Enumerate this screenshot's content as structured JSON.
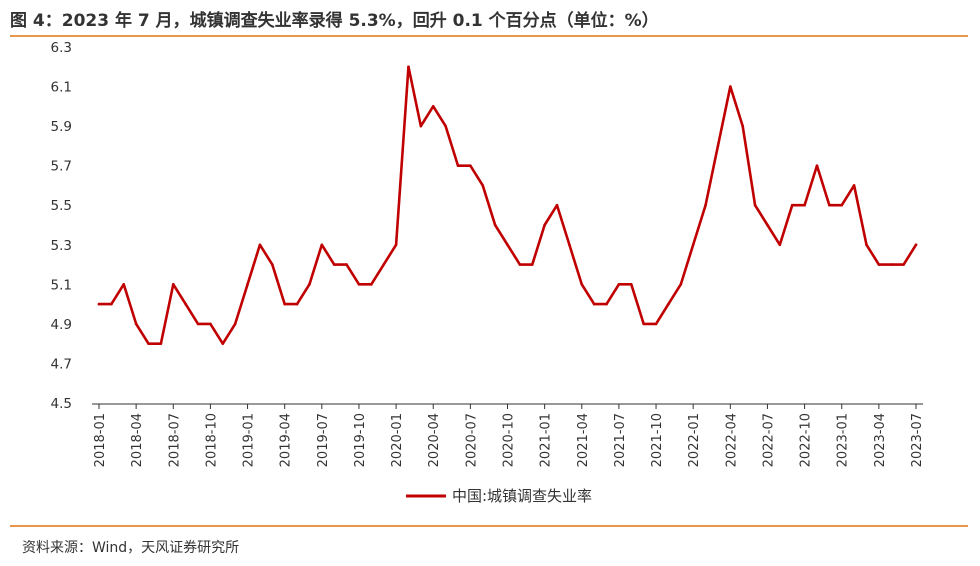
{
  "header": {
    "title": "图 4：2023 年 7 月，城镇调查失业率录得 5.3%，回升 0.1 个百分点（单位：%）"
  },
  "footer": {
    "source": "资料来源：Wind，天风证券研究所"
  },
  "colors": {
    "accent": "#e8974a",
    "series": "#c00000"
  },
  "chart_data": {
    "type": "line",
    "ylim": [
      4.5,
      6.3
    ],
    "yticks": [
      "6.3",
      "6.1",
      "5.9",
      "5.7",
      "5.5",
      "5.3",
      "5.1",
      "4.9",
      "4.7",
      "4.5"
    ],
    "x": [
      "2018-01",
      "2018-02",
      "2018-03",
      "2018-04",
      "2018-05",
      "2018-06",
      "2018-07",
      "2018-08",
      "2018-09",
      "2018-10",
      "2018-11",
      "2018-12",
      "2019-01",
      "2019-02",
      "2019-03",
      "2019-04",
      "2019-05",
      "2019-06",
      "2019-07",
      "2019-08",
      "2019-09",
      "2019-10",
      "2019-11",
      "2019-12",
      "2020-01",
      "2020-02",
      "2020-03",
      "2020-04",
      "2020-05",
      "2020-06",
      "2020-07",
      "2020-08",
      "2020-09",
      "2020-10",
      "2020-11",
      "2020-12",
      "2021-01",
      "2021-02",
      "2021-03",
      "2021-04",
      "2021-05",
      "2021-06",
      "2021-07",
      "2021-08",
      "2021-09",
      "2021-10",
      "2021-11",
      "2021-12",
      "2022-01",
      "2022-02",
      "2022-03",
      "2022-04",
      "2022-05",
      "2022-06",
      "2022-07",
      "2022-08",
      "2022-09",
      "2022-10",
      "2022-11",
      "2022-12",
      "2023-01",
      "2023-02",
      "2023-03",
      "2023-04",
      "2023-05",
      "2023-06",
      "2023-07"
    ],
    "xtick_labels": [
      "2018-01",
      "2018-04",
      "2018-07",
      "2018-10",
      "2019-01",
      "2019-04",
      "2019-07",
      "2019-10",
      "2020-01",
      "2020-04",
      "2020-07",
      "2020-10",
      "2021-01",
      "2021-04",
      "2021-07",
      "2021-10",
      "2022-01",
      "2022-04",
      "2022-07",
      "2022-10",
      "2023-01",
      "2023-04",
      "2023-07"
    ],
    "series": [
      {
        "name": "中国:城镇调查失业率",
        "values": [
          5.0,
          5.0,
          5.1,
          4.9,
          4.8,
          4.8,
          5.1,
          5.0,
          4.9,
          4.9,
          4.8,
          4.9,
          5.1,
          5.3,
          5.2,
          5.0,
          5.0,
          5.1,
          5.3,
          5.2,
          5.2,
          5.1,
          5.1,
          5.2,
          5.3,
          6.2,
          5.9,
          6.0,
          5.9,
          5.7,
          5.7,
          5.6,
          5.4,
          5.3,
          5.2,
          5.2,
          5.4,
          5.5,
          5.3,
          5.1,
          5.0,
          5.0,
          5.1,
          5.1,
          4.9,
          4.9,
          5.0,
          5.1,
          5.3,
          5.5,
          5.8,
          6.1,
          5.9,
          5.5,
          5.4,
          5.3,
          5.5,
          5.5,
          5.7,
          5.5,
          5.5,
          5.6,
          5.3,
          5.2,
          5.2,
          5.2,
          5.3
        ]
      }
    ],
    "legend": "bottom-center",
    "grid": false
  }
}
